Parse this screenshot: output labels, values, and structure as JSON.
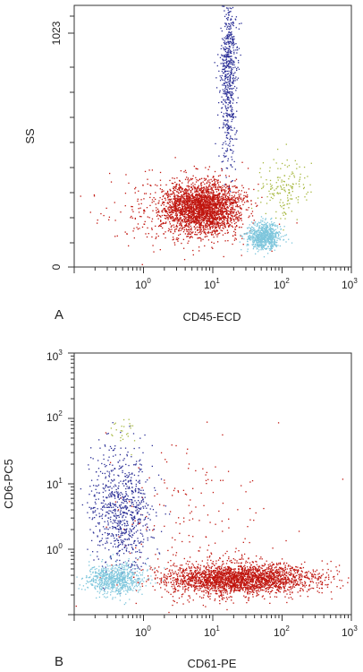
{
  "chart_data": [
    {
      "type": "scatter",
      "panel_label": "A",
      "xlabel": "CD45-ECD",
      "ylabel": "SS",
      "x_scale": "log",
      "y_scale": "linear",
      "xlim": [
        0.1,
        1000
      ],
      "ylim": [
        0,
        1100
      ],
      "x_ticks": [
        {
          "base": "10",
          "exp": "0",
          "value": 1
        },
        {
          "base": "10",
          "exp": "1",
          "value": 10
        },
        {
          "base": "10",
          "exp": "2",
          "value": 100
        },
        {
          "base": "10",
          "exp": "3",
          "value": 1000
        }
      ],
      "y_ticks": [
        {
          "label": "0",
          "value": 0
        },
        {
          "label": "1023",
          "value": 1023
        }
      ],
      "populations": [
        {
          "color": "#c0160f",
          "count": 2600,
          "x_center": 7,
          "x_spread_decades": 0.28,
          "y_center": 250,
          "y_spread": 55
        },
        {
          "color": "#c0160f",
          "count": 300,
          "x_center": 3,
          "x_spread_decades": 0.55,
          "y_center": 230,
          "y_spread": 80
        },
        {
          "color": "#2b2f96",
          "count": 650,
          "x_center": 17,
          "x_spread_decades": 0.06,
          "y_center": 820,
          "y_spread": 190
        },
        {
          "color": "#7ec6dc",
          "count": 750,
          "x_center": 55,
          "x_spread_decades": 0.12,
          "y_center": 130,
          "y_spread": 28
        },
        {
          "color": "#a7b840",
          "count": 160,
          "x_center": 110,
          "x_spread_decades": 0.18,
          "y_center": 330,
          "y_spread": 65
        }
      ]
    },
    {
      "type": "scatter",
      "panel_label": "B",
      "xlabel": "CD61-PE",
      "ylabel": "CD6-PC5",
      "x_scale": "log",
      "y_scale": "log",
      "xlim": [
        0.1,
        1000
      ],
      "ylim": [
        0.1,
        1000
      ],
      "x_ticks": [
        {
          "base": "10",
          "exp": "0",
          "value": 1
        },
        {
          "base": "10",
          "exp": "1",
          "value": 10
        },
        {
          "base": "10",
          "exp": "2",
          "value": 100
        },
        {
          "base": "10",
          "exp": "3",
          "value": 1000
        }
      ],
      "y_ticks": [
        {
          "base": "10",
          "exp": "0",
          "value": 1
        },
        {
          "base": "10",
          "exp": "1",
          "value": 10
        },
        {
          "base": "10",
          "exp": "2",
          "value": 100
        },
        {
          "base": "10",
          "exp": "3",
          "value": 1000
        }
      ],
      "populations": [
        {
          "color": "#c0160f",
          "count": 2600,
          "x_center": 25,
          "x_spread_decades": 0.55,
          "y_center": 0.35,
          "y_spread_decades": 0.12
        },
        {
          "color": "#c0160f",
          "count": 200,
          "x_center": 5,
          "x_spread_decades": 0.6,
          "y_center": 2,
          "y_spread_decades": 0.7
        },
        {
          "color": "#2b2f96",
          "count": 800,
          "x_center": 0.5,
          "x_spread_decades": 0.22,
          "y_center": 4,
          "y_spread_decades": 0.45
        },
        {
          "color": "#7ec6dc",
          "count": 700,
          "x_center": 0.4,
          "x_spread_decades": 0.2,
          "y_center": 0.35,
          "y_spread_decades": 0.12
        },
        {
          "color": "#a7b840",
          "count": 25,
          "x_center": 0.5,
          "x_spread_decades": 0.1,
          "y_center": 60,
          "y_spread_decades": 0.15
        }
      ]
    }
  ]
}
